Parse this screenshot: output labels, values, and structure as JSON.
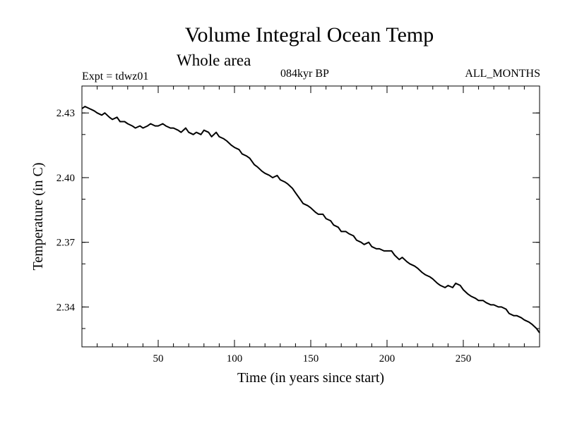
{
  "header": {
    "title": "Volume Integral Ocean Temp",
    "subtitle": "Whole area",
    "experiment": "Expt = tdwz01",
    "period": "084kyr BP",
    "months": "ALL_MONTHS"
  },
  "chart_data": {
    "type": "line",
    "title": "Volume Integral Ocean Temp",
    "subtitle": "Whole area",
    "xlabel": "Time (in years since start)",
    "ylabel": "Temperature (in C)",
    "xlim": [
      0,
      300
    ],
    "ylim": [
      2.3215,
      2.4425
    ],
    "xticks": [
      50,
      100,
      150,
      200,
      250
    ],
    "yticks": [
      2.34,
      2.37,
      2.4,
      2.43
    ],
    "ytick_labels": [
      "2.34",
      "2.37",
      "2.40",
      "2.43"
    ],
    "grid": false,
    "series": [
      {
        "name": "Volume integral ocean temperature",
        "x": [
          0,
          2,
          5,
          8,
          10,
          13,
          15,
          18,
          20,
          23,
          25,
          28,
          30,
          33,
          35,
          38,
          40,
          43,
          45,
          48,
          50,
          53,
          55,
          58,
          60,
          63,
          65,
          68,
          70,
          73,
          75,
          78,
          80,
          83,
          85,
          88,
          90,
          93,
          95,
          98,
          100,
          103,
          105,
          108,
          110,
          113,
          115,
          118,
          120,
          123,
          125,
          128,
          130,
          133,
          135,
          138,
          140,
          143,
          145,
          148,
          150,
          153,
          155,
          158,
          160,
          163,
          165,
          168,
          170,
          173,
          175,
          178,
          180,
          183,
          185,
          188,
          190,
          193,
          195,
          198,
          200,
          203,
          205,
          208,
          210,
          213,
          215,
          218,
          220,
          223,
          225,
          228,
          230,
          233,
          235,
          238,
          240,
          243,
          245,
          248,
          250,
          253,
          255,
          258,
          260,
          263,
          265,
          268,
          270,
          273,
          275,
          278,
          280,
          283,
          285,
          288,
          290,
          293,
          295,
          298,
          300
        ],
        "y": [
          2.432,
          2.433,
          2.432,
          2.431,
          2.43,
          2.429,
          2.43,
          2.428,
          2.427,
          2.428,
          2.426,
          2.426,
          2.425,
          2.424,
          2.423,
          2.424,
          2.423,
          2.424,
          2.425,
          2.424,
          2.424,
          2.425,
          2.424,
          2.423,
          2.423,
          2.422,
          2.421,
          2.423,
          2.421,
          2.42,
          2.421,
          2.42,
          2.422,
          2.421,
          2.419,
          2.421,
          2.419,
          2.418,
          2.417,
          2.415,
          2.414,
          2.413,
          2.411,
          2.41,
          2.409,
          2.406,
          2.405,
          2.403,
          2.402,
          2.401,
          2.4,
          2.401,
          2.399,
          2.398,
          2.397,
          2.395,
          2.393,
          2.39,
          2.388,
          2.387,
          2.386,
          2.384,
          2.383,
          2.383,
          2.381,
          2.38,
          2.378,
          2.377,
          2.375,
          2.375,
          2.374,
          2.373,
          2.371,
          2.37,
          2.369,
          2.37,
          2.368,
          2.367,
          2.367,
          2.366,
          2.366,
          2.366,
          2.364,
          2.362,
          2.363,
          2.361,
          2.36,
          2.359,
          2.358,
          2.356,
          2.355,
          2.354,
          2.353,
          2.351,
          2.35,
          2.349,
          2.35,
          2.349,
          2.351,
          2.35,
          2.348,
          2.346,
          2.345,
          2.344,
          2.343,
          2.343,
          2.342,
          2.341,
          2.341,
          2.34,
          2.34,
          2.339,
          2.337,
          2.336,
          2.336,
          2.335,
          2.334,
          2.333,
          2.332,
          2.33,
          2.328
        ]
      }
    ]
  }
}
